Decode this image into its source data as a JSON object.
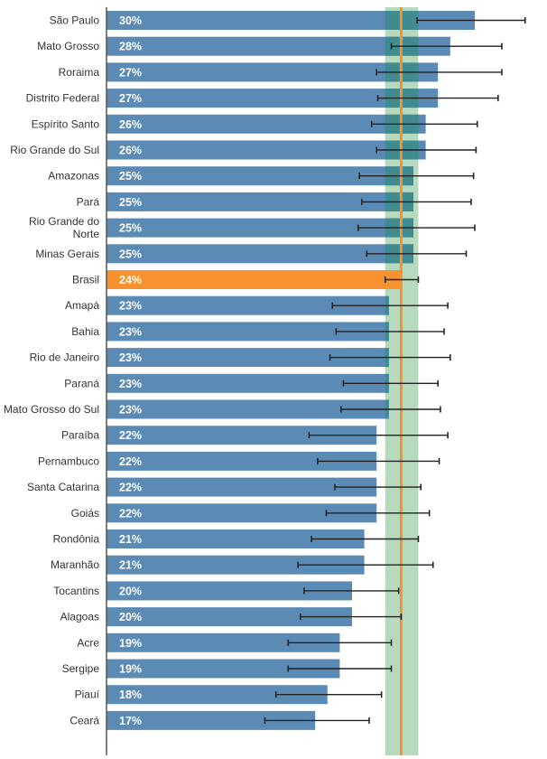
{
  "chart_data": {
    "type": "bar",
    "orientation": "horizontal",
    "categories": [
      "São Paulo",
      "Mato Grosso",
      "Roraima",
      "Distrito Federal",
      "Espírito Santo",
      "Rio Grande do Sul",
      "Amazonas",
      "Pará",
      "Rio Grande do Norte",
      "Minas Gerais",
      "Brasil",
      "Amapá",
      "Bahia",
      "Rio de Janeiro",
      "Paraná",
      "Mato Grosso do Sul",
      "Paraíba",
      "Pernambuco",
      "Santa Catarina",
      "Goiás",
      "Rondônia",
      "Maranhão",
      "Tocantins",
      "Alagoas",
      "Acre",
      "Sergipe",
      "Piauí",
      "Ceará"
    ],
    "values": [
      30,
      28,
      27,
      27,
      26,
      26,
      25,
      25,
      25,
      25,
      24,
      23,
      23,
      23,
      23,
      23,
      22,
      22,
      22,
      22,
      21,
      21,
      20,
      20,
      19,
      19,
      18,
      17
    ],
    "value_labels": [
      "30%",
      "28%",
      "27%",
      "27%",
      "26%",
      "26%",
      "25%",
      "25%",
      "25%",
      "25%",
      "24%",
      "23%",
      "23%",
      "23%",
      "23%",
      "23%",
      "22%",
      "22%",
      "22%",
      "22%",
      "21%",
      "21%",
      "20%",
      "20%",
      "19%",
      "19%",
      "18%",
      "17%"
    ],
    "error_low": [
      25.3,
      23.2,
      22.0,
      22.1,
      21.6,
      22.0,
      20.6,
      20.8,
      20.5,
      21.2,
      22.7,
      18.4,
      18.7,
      18.2,
      19.3,
      19.1,
      16.5,
      17.2,
      18.6,
      17.9,
      16.7,
      15.6,
      16.1,
      15.8,
      14.8,
      14.8,
      13.8,
      12.9
    ],
    "error_high": [
      34.1,
      32.2,
      32.2,
      31.9,
      30.2,
      30.1,
      29.9,
      29.7,
      30.0,
      29.3,
      25.4,
      27.8,
      27.5,
      28.0,
      27.0,
      27.2,
      27.8,
      27.1,
      25.6,
      26.3,
      25.4,
      26.6,
      23.8,
      24.0,
      23.2,
      23.2,
      22.4,
      21.4
    ],
    "reference": {
      "label": "Brasil",
      "value": 24,
      "ci_low": 22.7,
      "ci_high": 25.4
    },
    "xlim": [
      0,
      35
    ],
    "grid": false,
    "legend": "none",
    "colors": {
      "bar": "#5b8bb5",
      "highlight": "#f7922e",
      "reference_line": "#f7922e",
      "reference_band": "#b7d9bd",
      "band_over_bar": "#3f8b90",
      "error_bar": "#222222",
      "axis": "#555555"
    }
  }
}
